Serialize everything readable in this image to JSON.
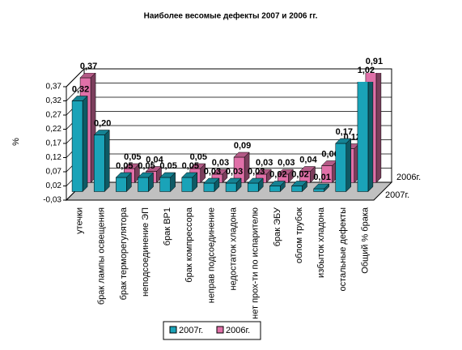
{
  "chart_data": {
    "type": "bar3d",
    "title": "Наиболее весомые дефекты 2007 и 2006 гг.",
    "y_label": "%",
    "categories": [
      "утечки",
      "брак лампы освещения",
      "брак терморегулятора",
      "неподсоединение ЭП",
      "брак ВР1",
      "брак компрессора",
      "неправ подсоединение",
      "недостаток хладона",
      "нет прох-ти по испарителю",
      "брак ЭБУ",
      "облом трубок",
      "избыток хладона",
      "остальные дефекты",
      "Общий % брака"
    ],
    "series": [
      {
        "name": "2007г.",
        "color": "#1aa3b8",
        "values": [
          0.32,
          0.2,
          0.05,
          0.05,
          0.05,
          0.05,
          0.03,
          0.03,
          0.03,
          0.02,
          0.02,
          0.01,
          0.17,
          1.02
        ],
        "value_labels": [
          "0,32",
          "0,20",
          "0,05",
          "0,05",
          "0,05",
          "0,05",
          "0,03",
          "0,03",
          "0,03",
          "0,02",
          "0,02",
          "0,01",
          "0,17",
          "1,02"
        ]
      },
      {
        "name": "2006г.",
        "color": "#e070a8",
        "values": [
          0.37,
          null,
          0.05,
          0.04,
          null,
          0.05,
          0.03,
          0.09,
          0.03,
          0.03,
          0.04,
          0.06,
          0.12,
          0.91
        ],
        "value_labels": [
          "0,37",
          null,
          "0,05",
          "0,04",
          null,
          "0,05",
          "0,03",
          "0,09",
          "0,03",
          "0,03",
          "0,04",
          "0,06",
          "0,12",
          "0,91"
        ]
      }
    ],
    "ylim": [
      -0.03,
      0.37
    ],
    "yticks": [
      {
        "value": -0.03,
        "label": "-0,03"
      },
      {
        "value": 0.02,
        "label": "0,02"
      },
      {
        "value": 0.07,
        "label": "0,07"
      },
      {
        "value": 0.12,
        "label": "0,12"
      },
      {
        "value": 0.17,
        "label": "0,17"
      },
      {
        "value": 0.22,
        "label": "0,22"
      },
      {
        "value": 0.27,
        "label": "0,27"
      },
      {
        "value": 0.32,
        "label": "0,32"
      },
      {
        "value": 0.37,
        "label": "0,37"
      }
    ],
    "grid": true,
    "legend": "bottom"
  }
}
